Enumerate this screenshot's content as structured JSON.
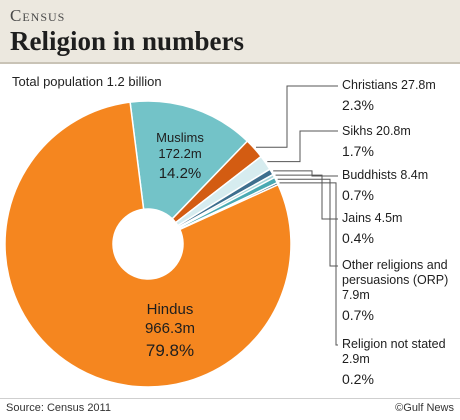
{
  "header": {
    "kicker": "Census",
    "title": "Religion in numbers"
  },
  "subtitle": "Total population 1.2 billion",
  "chart_data": {
    "type": "pie",
    "donut": true,
    "unit": "million",
    "slices": [
      {
        "name": "Hindus",
        "value_label": "966.3m",
        "value": 966.3,
        "percent": 79.8,
        "percent_label": "79.8%",
        "color": "#f5861f"
      },
      {
        "name": "Muslims",
        "value_label": "172.2m",
        "value": 172.2,
        "percent": 14.2,
        "percent_label": "14.2%",
        "color": "#73c3c8"
      },
      {
        "name": "Christians",
        "value_label": "27.8m",
        "value": 27.8,
        "percent": 2.3,
        "percent_label": "2.3%",
        "color": "#d35c12"
      },
      {
        "name": "Sikhs",
        "value_label": "20.8m",
        "value": 20.8,
        "percent": 1.7,
        "percent_label": "1.7%",
        "color": "#d6ecef"
      },
      {
        "name": "Buddhists",
        "value_label": "8.4m",
        "value": 8.4,
        "percent": 0.7,
        "percent_label": "0.7%",
        "color": "#3e6f8e"
      },
      {
        "name": "Jains",
        "value_label": "4.5m",
        "value": 4.5,
        "percent": 0.4,
        "percent_label": "0.4%",
        "color": "#a9d6da"
      },
      {
        "name": "Other religions and persuasions (ORP)",
        "value_label": "7.9m",
        "value": 7.9,
        "percent": 0.7,
        "percent_label": "0.7%",
        "color": "#4aaab3"
      },
      {
        "name": "Religion not stated",
        "value_label": "2.9m",
        "value": 2.9,
        "percent": 0.2,
        "percent_label": "0.2%",
        "color": "#2f5a70"
      }
    ]
  },
  "legend": [
    {
      "text": "Christians 27.8m",
      "pct": "2.3%"
    },
    {
      "text": "Sikhs 20.8m",
      "pct": "1.7%"
    },
    {
      "text": "Buddhists 8.4m",
      "pct": "0.7%"
    },
    {
      "text": "Jains 4.5m",
      "pct": "0.4%"
    },
    {
      "text": "Other religions and persuasions (ORP) 7.9m",
      "pct": "0.7%"
    },
    {
      "text": "Religion not stated 2.9m",
      "pct": "0.2%"
    }
  ],
  "footer": {
    "source": "Source: Census 2011",
    "credit": "©Gulf News"
  }
}
